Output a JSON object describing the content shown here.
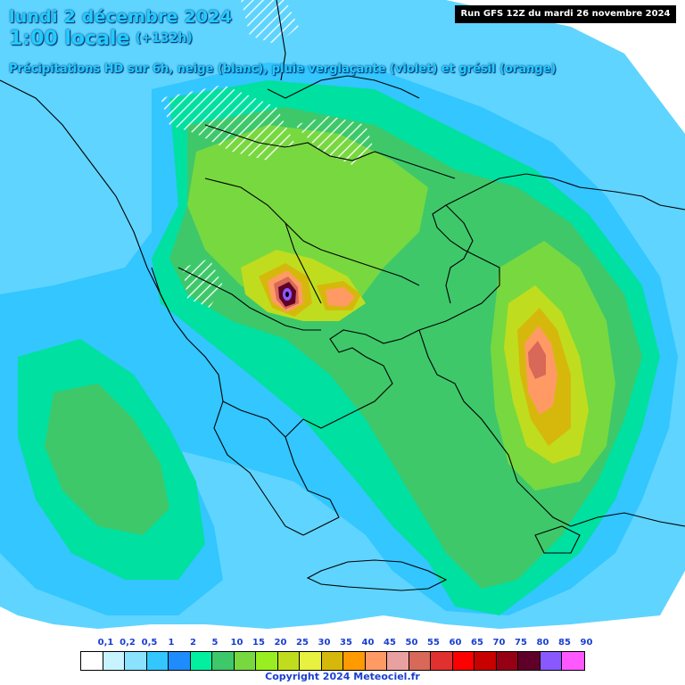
{
  "header": {
    "date": "lundi 2 décembre 2024",
    "hour": "1:00 locale",
    "offset": "(+132h)",
    "subtitle": "Précipitations HD sur 6h, neige (blanc), pluie verglaçante (violet) et grésil (orange)",
    "run": "Run GFS 12Z du mardi 26 novembre 2024"
  },
  "legend": {
    "ticks": [
      "0,1",
      "0,2",
      "0,5",
      "1",
      "2",
      "5",
      "10",
      "15",
      "20",
      "25",
      "30",
      "35",
      "40",
      "45",
      "50",
      "55",
      "60",
      "65",
      "70",
      "75",
      "80",
      "85",
      "90"
    ],
    "colors": [
      "#ffffff",
      "#c8f4ff",
      "#8ae2ff",
      "#33c6ff",
      "#1e8cff",
      "#00f0a0",
      "#3ec86a",
      "#78d840",
      "#98ee20",
      "#bfdd1e",
      "#e8f040",
      "#d6b80c",
      "#ff9a00",
      "#ff9a64",
      "#e8a0a0",
      "#d86858",
      "#e03030",
      "#ff0000",
      "#c80000",
      "#960014",
      "#600028",
      "#8a58ff",
      "#ff58ff"
    ]
  },
  "map": {
    "colors": {
      "sea": "#ffffff",
      "precip_light": "#33c6ff",
      "precip_med": "#00f0a0",
      "precip_green": "#3ec86a",
      "precip_yellow": "#bfdd1e",
      "precip_orange": "#d6b80c",
      "precip_peach": "#ff9a64",
      "precip_red": "#d86858",
      "precip_dark": "#600028",
      "precip_core": "#8a58ff",
      "borders": "#000000"
    }
  },
  "copyright": "Copyright 2024 Meteociel.fr"
}
